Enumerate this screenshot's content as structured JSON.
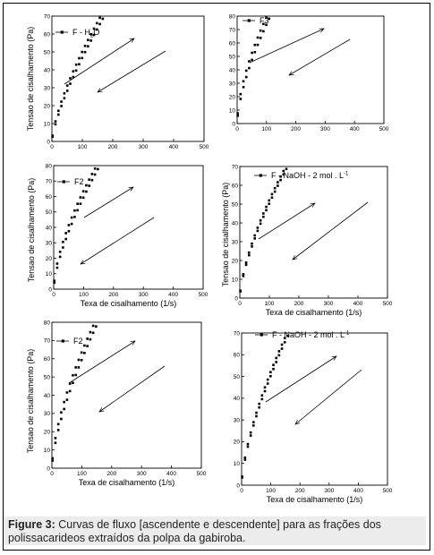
{
  "caption": {
    "label": "Figure 3:",
    "text": "Curvas de fluxo [ascendente e descendente] para as frações dos polissacarideos extraídos da polpa da gabiroba."
  },
  "chart_data": [
    {
      "type": "scatter",
      "legend": {
        "label": "F - H",
        "sub": "2",
        "tail": "O"
      },
      "xlabel": "",
      "ylabel": "Tensao de cisalhamento (Pa)",
      "xlim": [
        0,
        500
      ],
      "ylim": [
        0,
        70
      ],
      "xticks": [
        0,
        100,
        200,
        300,
        400,
        500
      ],
      "yticks": [
        0,
        10,
        20,
        30,
        40,
        50,
        60,
        70
      ],
      "series": [
        {
          "a": 2.0,
          "p": 0.7,
          "upper": true
        },
        {
          "a": 1.55,
          "p": 0.74,
          "upper": false
        }
      ]
    },
    {
      "type": "scatter",
      "legend": {
        "label": "F3"
      },
      "xlabel": "",
      "ylabel": "",
      "xlim": [
        0,
        500
      ],
      "ylim": [
        0,
        80
      ],
      "xticks": [
        0,
        100,
        200,
        300,
        400,
        500
      ],
      "yticks": [
        0,
        10,
        20,
        30,
        40,
        50,
        60,
        70,
        80
      ],
      "series": [
        {
          "a": 5.0,
          "p": 0.6,
          "upper": true
        },
        {
          "a": 3.7,
          "p": 0.65,
          "upper": false
        }
      ]
    },
    {
      "type": "scatter",
      "legend": {
        "label": "F2"
      },
      "xlabel": "Texa de cisalhamento (1/s)",
      "ylabel": "Tensao de cisalhamento (Pa)",
      "xlim": [
        0,
        500
      ],
      "ylim": [
        0,
        80
      ],
      "xticks": [
        0,
        100,
        200,
        300,
        400,
        500
      ],
      "yticks": [
        0,
        10,
        20,
        30,
        40,
        50,
        60,
        70,
        80
      ],
      "series": [
        {
          "a": 3.5,
          "p": 0.63,
          "upper": true
        },
        {
          "a": 2.6,
          "p": 0.68,
          "upper": false
        }
      ]
    },
    {
      "type": "scatter",
      "legend": {
        "label": "F - NaOH - 2 mol . L",
        "sup": "-1"
      },
      "xlabel": "Texa de cisalhamento (1/s)",
      "ylabel": "Tensao de cisalhamento (Pa)",
      "xlim": [
        0,
        500
      ],
      "ylim": [
        0,
        70
      ],
      "xticks": [
        0,
        100,
        200,
        300,
        400,
        500
      ],
      "yticks": [
        0,
        10,
        20,
        30,
        40,
        50,
        60,
        70
      ],
      "series": [
        {
          "a": 2.5,
          "p": 0.66,
          "upper": true
        },
        {
          "a": 2.2,
          "p": 0.68,
          "upper": false
        }
      ]
    },
    {
      "type": "scatter",
      "legend": {
        "label": "F2"
      },
      "xlabel": "Texa de cisalhamento (1/s)",
      "ylabel": "Tensao de cisalhamento (Pa)",
      "xlim": [
        0,
        500
      ],
      "ylim": [
        0,
        80
      ],
      "xticks": [
        0,
        100,
        200,
        300,
        400,
        500
      ],
      "yticks": [
        0,
        10,
        20,
        30,
        40,
        50,
        60,
        70,
        80
      ],
      "series": [
        {
          "a": 3.5,
          "p": 0.63,
          "upper": true
        },
        {
          "a": 2.6,
          "p": 0.68,
          "upper": false
        }
      ]
    },
    {
      "type": "scatter",
      "legend": {
        "label": "F - NaOH - 2 mol . L",
        "sup": "-1"
      },
      "xlabel": "Texa de cisalhamento (1/s)",
      "ylabel": "",
      "xlim": [
        0,
        500
      ],
      "ylim": [
        0,
        70
      ],
      "xticks": [
        0,
        100,
        200,
        300,
        400,
        500
      ],
      "yticks": [
        0,
        10,
        20,
        30,
        40,
        50,
        60,
        70
      ],
      "series": [
        {
          "a": 2.5,
          "p": 0.66,
          "upper": true
        },
        {
          "a": 2.2,
          "p": 0.68,
          "upper": false
        }
      ]
    }
  ]
}
